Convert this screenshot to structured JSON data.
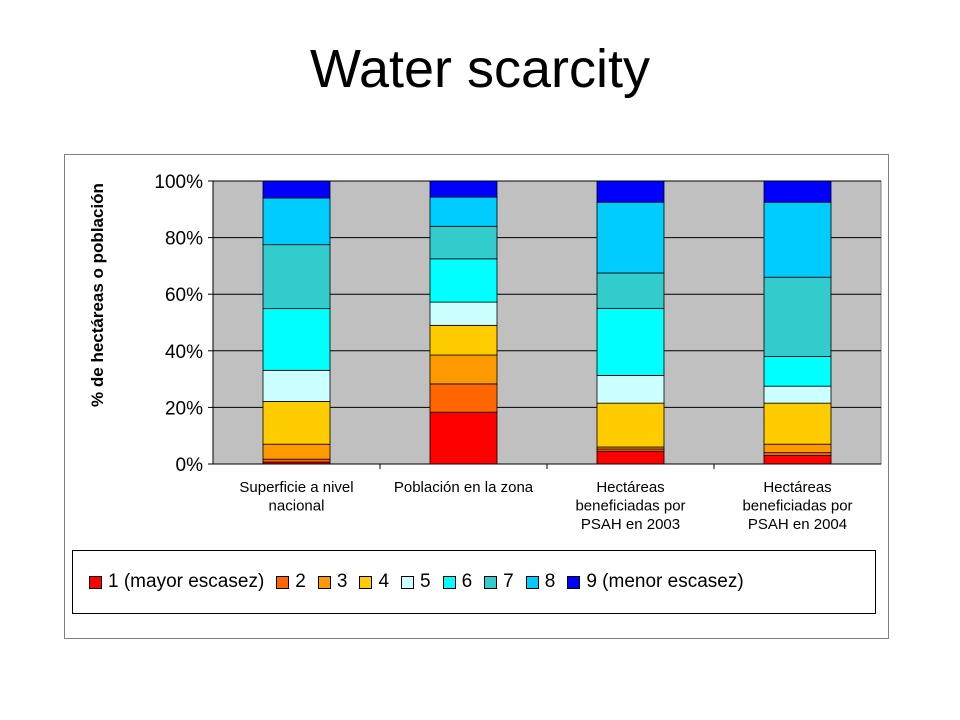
{
  "slide": {
    "title": "Water scarcity"
  },
  "chart_data": {
    "type": "bar",
    "stacked": true,
    "normalized": true,
    "title": "",
    "xlabel": "",
    "ylabel": "% de hectáreas o población",
    "ylim": [
      0,
      100
    ],
    "yticks": [
      "0%",
      "20%",
      "40%",
      "60%",
      "80%",
      "100%"
    ],
    "grid": true,
    "legend_position": "bottom",
    "plot_background": "#c0c0c0",
    "categories": [
      [
        "Superficie a nivel",
        "nacional"
      ],
      [
        "Población en la zona"
      ],
      [
        "Hectáreas",
        "beneficiadas por",
        "PSAH en 2003"
      ],
      [
        "Hectáreas",
        "beneficiadas por",
        "PSAH en 2004"
      ]
    ],
    "series": [
      {
        "name": "1 (mayor escasez)",
        "color": "#ff0000",
        "values": [
          0.7,
          18.3,
          4.5,
          3.0
        ]
      },
      {
        "name": "2",
        "color": "#ff6600",
        "values": [
          1.0,
          10.0,
          0.8,
          1.0
        ]
      },
      {
        "name": "3",
        "color": "#ff9900",
        "values": [
          5.3,
          10.2,
          0.7,
          3.0
        ]
      },
      {
        "name": "4",
        "color": "#ffcc00",
        "values": [
          15.1,
          10.5,
          15.5,
          14.5
        ]
      },
      {
        "name": "5",
        "color": "#ccffff",
        "values": [
          11.0,
          8.2,
          9.8,
          6.0
        ]
      },
      {
        "name": "6",
        "color": "#00ffff",
        "values": [
          21.8,
          15.3,
          23.7,
          10.5
        ]
      },
      {
        "name": "7",
        "color": "#33cccc",
        "values": [
          22.6,
          11.5,
          12.5,
          28.0
        ]
      },
      {
        "name": "8",
        "color": "#00ccff",
        "values": [
          16.5,
          10.3,
          25.0,
          26.5
        ]
      },
      {
        "name": "9 (menor escasez)",
        "color": "#0000ff",
        "values": [
          6.0,
          5.7,
          7.5,
          7.5
        ]
      }
    ]
  }
}
